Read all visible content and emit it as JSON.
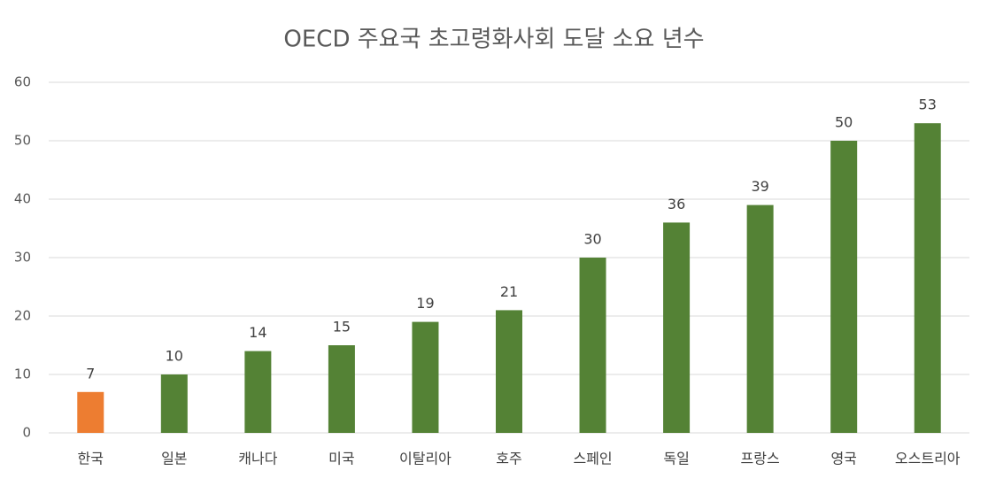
{
  "chart_data": {
    "type": "bar",
    "title": "OECD 주요국 초고령화사회 도달 소요 년수",
    "categories": [
      "한국",
      "일본",
      "캐나다",
      "미국",
      "이탈리아",
      "호주",
      "스페인",
      "독일",
      "프랑스",
      "영국",
      "오스트리아"
    ],
    "values": [
      7,
      10,
      14,
      15,
      19,
      21,
      30,
      36,
      39,
      50,
      53
    ],
    "colors": [
      "#ed7d31",
      "#548235",
      "#548235",
      "#548235",
      "#548235",
      "#548235",
      "#548235",
      "#548235",
      "#548235",
      "#548235",
      "#548235"
    ],
    "ylim": [
      0,
      60
    ],
    "yticks": [
      0,
      10,
      20,
      30,
      40,
      50,
      60
    ],
    "grid": true
  }
}
